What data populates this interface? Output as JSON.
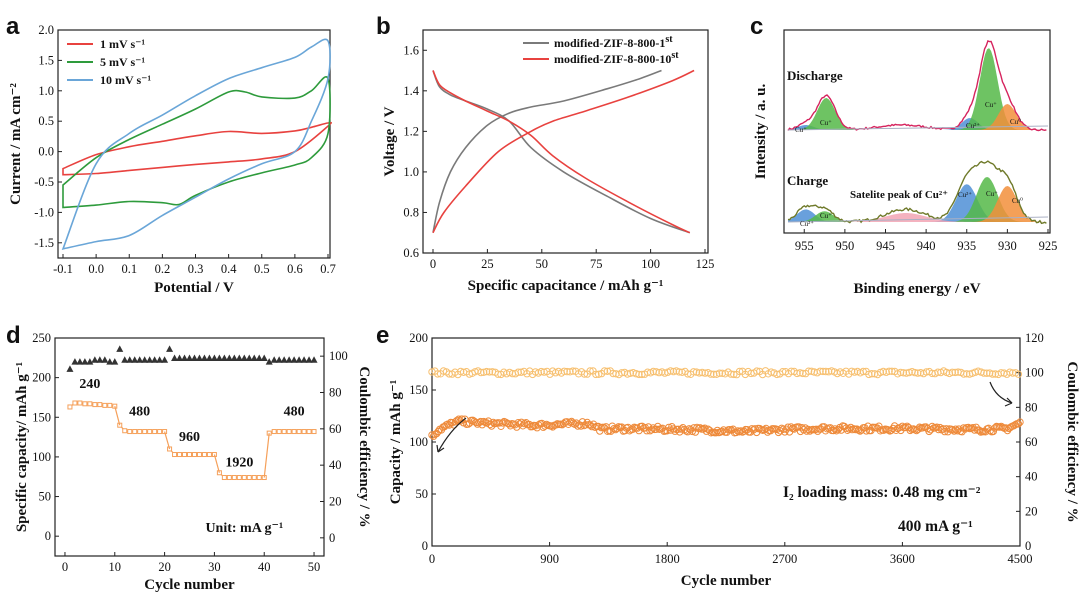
{
  "colors": {
    "red": "#e8423f",
    "green": "#2e9b3c",
    "blue": "#6aa6d8",
    "gray": "#7a7a7a",
    "xps_raw": "#d6245e",
    "xps_raw2": "#6f7a2a",
    "xps_blue": "#4f8fd6",
    "xps_green": "#55b948",
    "xps_orange": "#f28f3b",
    "xps_pink": "#f2a4b4",
    "rate_orange": "#f5a05a",
    "cyc_cap": "#ee8a3a",
    "cyc_ce": "#f7c070",
    "ce_tri": "#333333"
  },
  "chart_data": [
    {
      "id": "a",
      "type": "line",
      "panel_label": "a",
      "xlabel": "Potential / V",
      "ylabel": "Current / mA cm⁻²",
      "xlim": [
        -0.1,
        0.7
      ],
      "ylim": [
        -1.75,
        2.0
      ],
      "xticks": [
        "-0.1",
        "0.0",
        "0.1",
        "0.2",
        "0.3",
        "0.4",
        "0.5",
        "0.6",
        "0.7"
      ],
      "yticks": [
        "-1.5",
        "-1.0",
        "-0.5",
        "0.0",
        "0.5",
        "1.0",
        "1.5",
        "2.0"
      ],
      "legend_position": "top-left",
      "series": [
        {
          "name": "1 mV s⁻¹",
          "color_key": "red",
          "x": [
            -0.1,
            0.0,
            0.1,
            0.2,
            0.3,
            0.4,
            0.5,
            0.6,
            0.65,
            0.7,
            0.7,
            0.6,
            0.5,
            0.4,
            0.3,
            0.2,
            0.1,
            0.0,
            -0.1
          ],
          "y": [
            -0.28,
            -0.05,
            0.08,
            0.17,
            0.26,
            0.33,
            0.3,
            0.34,
            0.4,
            0.47,
            0.42,
            0.0,
            -0.12,
            -0.17,
            -0.21,
            -0.26,
            -0.31,
            -0.36,
            -0.38
          ]
        },
        {
          "name": "5 mV s⁻¹",
          "color_key": "green",
          "x": [
            -0.1,
            0.0,
            0.1,
            0.2,
            0.3,
            0.4,
            0.45,
            0.5,
            0.6,
            0.65,
            0.7,
            0.7,
            0.65,
            0.6,
            0.5,
            0.4,
            0.3,
            0.25,
            0.2,
            0.1,
            0.0,
            -0.1
          ],
          "y": [
            -0.55,
            -0.1,
            0.2,
            0.45,
            0.7,
            0.98,
            0.98,
            0.9,
            0.88,
            1.0,
            1.2,
            0.3,
            -0.1,
            -0.22,
            -0.35,
            -0.5,
            -0.72,
            -0.87,
            -0.84,
            -0.82,
            -0.88,
            -0.92
          ]
        },
        {
          "name": "10 mV s⁻¹",
          "color_key": "blue",
          "x": [
            -0.1,
            0.0,
            0.1,
            0.2,
            0.3,
            0.4,
            0.5,
            0.6,
            0.65,
            0.7,
            0.7,
            0.65,
            0.6,
            0.5,
            0.4,
            0.3,
            0.2,
            0.1,
            0.0,
            -0.1
          ],
          "y": [
            -1.6,
            -0.2,
            0.3,
            0.6,
            0.92,
            1.2,
            1.38,
            1.55,
            1.72,
            1.82,
            1.2,
            0.5,
            0.0,
            -0.2,
            -0.45,
            -0.75,
            -1.05,
            -1.38,
            -1.48,
            -1.6
          ]
        }
      ]
    },
    {
      "id": "b",
      "type": "line",
      "panel_label": "b",
      "xlabel": "Specific capacitance / mAh g⁻¹",
      "ylabel": "Voltage / V",
      "xlim": [
        0,
        125
      ],
      "ylim": [
        0.6,
        1.7
      ],
      "xticks": [
        "0",
        "25",
        "50",
        "75",
        "100",
        "125"
      ],
      "yticks": [
        "0.6",
        "0.8",
        "1.0",
        "1.2",
        "1.4",
        "1.6"
      ],
      "legend_position": "top-right",
      "series": [
        {
          "name": "modified-ZIF-8-800-1st",
          "color_key": "gray",
          "role": "charge",
          "x": [
            0,
            3,
            8,
            15,
            25,
            35,
            45,
            60,
            80,
            95,
            105
          ],
          "y": [
            0.7,
            0.85,
            1.0,
            1.12,
            1.23,
            1.29,
            1.32,
            1.35,
            1.41,
            1.46,
            1.5
          ]
        },
        {
          "name": "modified-ZIF-8-800-1st",
          "color_key": "gray",
          "role": "discharge",
          "x": [
            0,
            3,
            8,
            15,
            25,
            35,
            45,
            60,
            80,
            100,
            118
          ],
          "y": [
            1.5,
            1.42,
            1.38,
            1.35,
            1.31,
            1.25,
            1.12,
            1.0,
            0.88,
            0.77,
            0.7
          ]
        },
        {
          "name": "modified-ZIF-8-800-10st",
          "color_key": "red",
          "role": "charge",
          "x": [
            0,
            5,
            15,
            30,
            45,
            55,
            70,
            90,
            110,
            120
          ],
          "y": [
            0.7,
            0.8,
            0.93,
            1.1,
            1.2,
            1.25,
            1.3,
            1.37,
            1.45,
            1.5
          ]
        },
        {
          "name": "modified-ZIF-8-800-10st",
          "color_key": "red",
          "role": "discharge",
          "x": [
            0,
            3,
            8,
            15,
            25,
            35,
            45,
            55,
            70,
            90,
            110,
            118
          ],
          "y": [
            1.5,
            1.43,
            1.39,
            1.35,
            1.3,
            1.25,
            1.18,
            1.08,
            0.97,
            0.85,
            0.74,
            0.7
          ]
        }
      ]
    },
    {
      "id": "c",
      "type": "line",
      "panel_label": "c",
      "xlabel": "Binding energy / eV",
      "ylabel": "Intensity / a. u.",
      "xlim": [
        957,
        925
      ],
      "ylim": [
        0,
        1
      ],
      "reversed_x": true,
      "xticks": [
        "955",
        "950",
        "945",
        "940",
        "935",
        "930",
        "925"
      ],
      "annotations": [
        "Discharge",
        "Charge",
        "Satelite peak of Cu²⁺",
        "Cu⁺",
        "Cu⁺",
        "Cu⁺",
        "Cu⁰",
        "Cu²⁺",
        "Cu⁺",
        "Cu⁰",
        "Cu²⁺",
        "Cu²⁺",
        "Cu⁺"
      ],
      "series": [
        {
          "name": "Discharge raw",
          "peaks_eV": [
            952.5,
            934.5,
            932.3,
            930.2
          ],
          "peak_heights": [
            0.35,
            0.12,
            0.88,
            0.28
          ]
        },
        {
          "name": "Charge raw",
          "peaks_eV": [
            954.5,
            952.5,
            942.5,
            934.8,
            932.3,
            930.0
          ],
          "peak_heights": [
            0.18,
            0.15,
            0.12,
            0.45,
            0.55,
            0.4
          ]
        }
      ]
    },
    {
      "id": "d",
      "type": "scatter",
      "panel_label": "d",
      "xlabel": "Cycle number",
      "ylabel": "Specific capacity/ mAh g⁻¹",
      "y2label": "Coulombic efficiency / %",
      "xlim": [
        -2,
        52
      ],
      "ylim": [
        -25,
        250
      ],
      "y2lim": [
        -10,
        110
      ],
      "xticks": [
        "0",
        "10",
        "20",
        "30",
        "40",
        "50"
      ],
      "yticks": [
        "0",
        "50",
        "100",
        "150",
        "200",
        "250"
      ],
      "y2ticks": [
        "0",
        "20",
        "40",
        "60",
        "80",
        "100"
      ],
      "rate_labels": [
        "240",
        "480",
        "960",
        "1920",
        "480"
      ],
      "unit_text": "Unit: mA g⁻¹",
      "capacity_segments": [
        {
          "cycles": [
            1,
            10
          ],
          "values": [
            163,
            168,
            168,
            167,
            167,
            166,
            166,
            165,
            165,
            164
          ]
        },
        {
          "cycles": [
            11,
            20
          ],
          "values": [
            140,
            133,
            132,
            132,
            132,
            132,
            132,
            132,
            132,
            132
          ]
        },
        {
          "cycles": [
            21,
            30
          ],
          "values": [
            110,
            103,
            103,
            103,
            103,
            103,
            103,
            103,
            103,
            103
          ]
        },
        {
          "cycles": [
            31,
            40
          ],
          "values": [
            80,
            74,
            74,
            74,
            74,
            74,
            74,
            74,
            74,
            74
          ]
        },
        {
          "cycles": [
            41,
            50
          ],
          "values": [
            130,
            132,
            132,
            132,
            132,
            132,
            132,
            132,
            132,
            132
          ]
        }
      ],
      "ce_values": [
        93,
        97,
        97,
        97,
        97,
        98,
        98,
        98,
        97,
        97,
        104,
        98,
        98,
        98,
        98,
        98,
        98,
        98,
        98,
        98,
        104,
        99,
        99,
        99,
        99,
        99,
        99,
        99,
        99,
        99,
        99,
        99,
        99,
        99,
        99,
        99,
        99,
        99,
        99,
        99,
        97,
        98,
        98,
        98,
        98,
        98,
        98,
        98,
        98,
        98
      ]
    },
    {
      "id": "e",
      "type": "scatter",
      "panel_label": "e",
      "xlabel": "Cycle number",
      "ylabel": "Capacity / mAh g⁻¹",
      "y2label": "Coulombic efficiency / %",
      "xlim": [
        0,
        4500
      ],
      "ylim": [
        0,
        200
      ],
      "y2lim": [
        0,
        120
      ],
      "xticks": [
        "0",
        "900",
        "1800",
        "2700",
        "3600",
        "4500"
      ],
      "yticks": [
        "0",
        "50",
        "100",
        "150",
        "200"
      ],
      "y2ticks": [
        "0",
        "20",
        "40",
        "60",
        "80",
        "100",
        "120"
      ],
      "annotation_1": "I₂ loading mass: 0.48 mg cm⁻²",
      "annotation_2": "400 mA g⁻¹",
      "capacity_profile": {
        "x": [
          0,
          50,
          200,
          400,
          800,
          1200,
          1300,
          1400,
          2000,
          2400,
          2700,
          3000,
          3600,
          4200,
          4400,
          4500
        ],
        "y": [
          105,
          112,
          120,
          118,
          116,
          118,
          112,
          113,
          112,
          110,
          112,
          113,
          113,
          112,
          113,
          118
        ]
      },
      "ce_profile": {
        "x": [
          0,
          4500
        ],
        "y": [
          100,
          100
        ]
      }
    }
  ]
}
